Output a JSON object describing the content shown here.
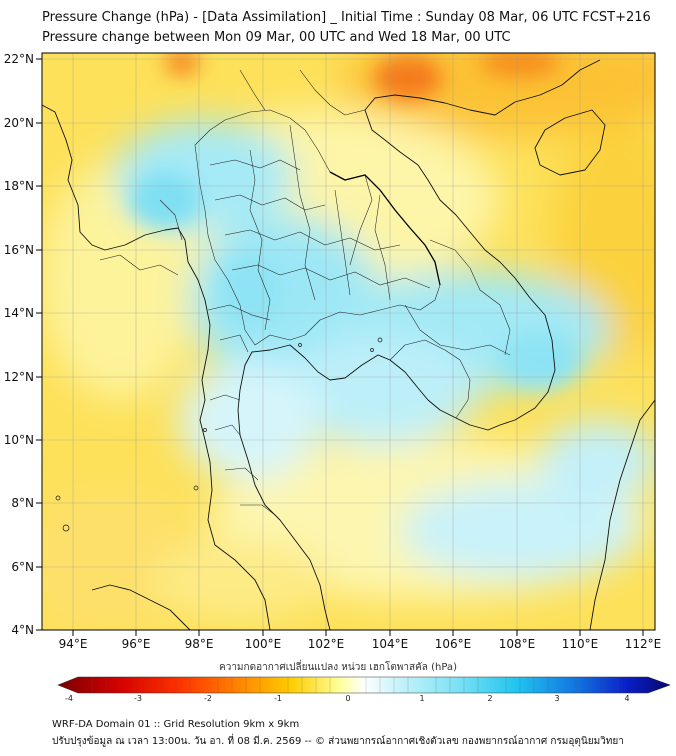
{
  "header": {
    "title_line1": "Pressure Change (hPa) - [Data Assimilation] _ Initial Time : Sunday 08 Mar, 06 UTC FCST+216",
    "title_line2": "Pressure change between Mon 09 Mar, 00 UTC and Wed 18 Mar, 00 UTC"
  },
  "map": {
    "lat_labels": [
      "22°N",
      "20°N",
      "18°N",
      "16°N",
      "14°N",
      "12°N",
      "10°N",
      "8°N",
      "6°N",
      "4°N"
    ],
    "lon_labels": [
      "94°E",
      "96°E",
      "98°E",
      "100°E",
      "102°E",
      "104°E",
      "106°E",
      "108°E",
      "110°E",
      "112°E"
    ],
    "lat_values": [
      22,
      20,
      18,
      16,
      14,
      12,
      10,
      8,
      6,
      4
    ],
    "lon_values": [
      94,
      96,
      98,
      100,
      102,
      104,
      106,
      108,
      110,
      112
    ],
    "lat_range": [
      4,
      22.3
    ],
    "lon_range": [
      93.1,
      112.4
    ]
  },
  "colorbar": {
    "label": "ความกดอากาศเปลี่ยนแปลง หน่วย เฮกโตพาสคัล (hPa)",
    "ticks": [
      "-4",
      "-3",
      "-2",
      "-1",
      "0",
      "1",
      "2",
      "3",
      "4"
    ],
    "tick_values": [
      -4,
      -3,
      -2,
      -1,
      0,
      1,
      2,
      3,
      4
    ],
    "range": [
      -4.3,
      4.3
    ]
  },
  "footer": {
    "line1": "WRF-DA Domain 01 :: Grid Resolution 9km x 9km",
    "line2": "ปรับปรุงข้อมูล ณ เวลา 13:00น. วัน อา. ที่ 08 มี.ค. 2569 -- © ส่วนพยากรณ์อากาศเชิงตัวเลข กองพยากรณ์อากาศ กรมอุตุนิยมวิทยา"
  }
}
